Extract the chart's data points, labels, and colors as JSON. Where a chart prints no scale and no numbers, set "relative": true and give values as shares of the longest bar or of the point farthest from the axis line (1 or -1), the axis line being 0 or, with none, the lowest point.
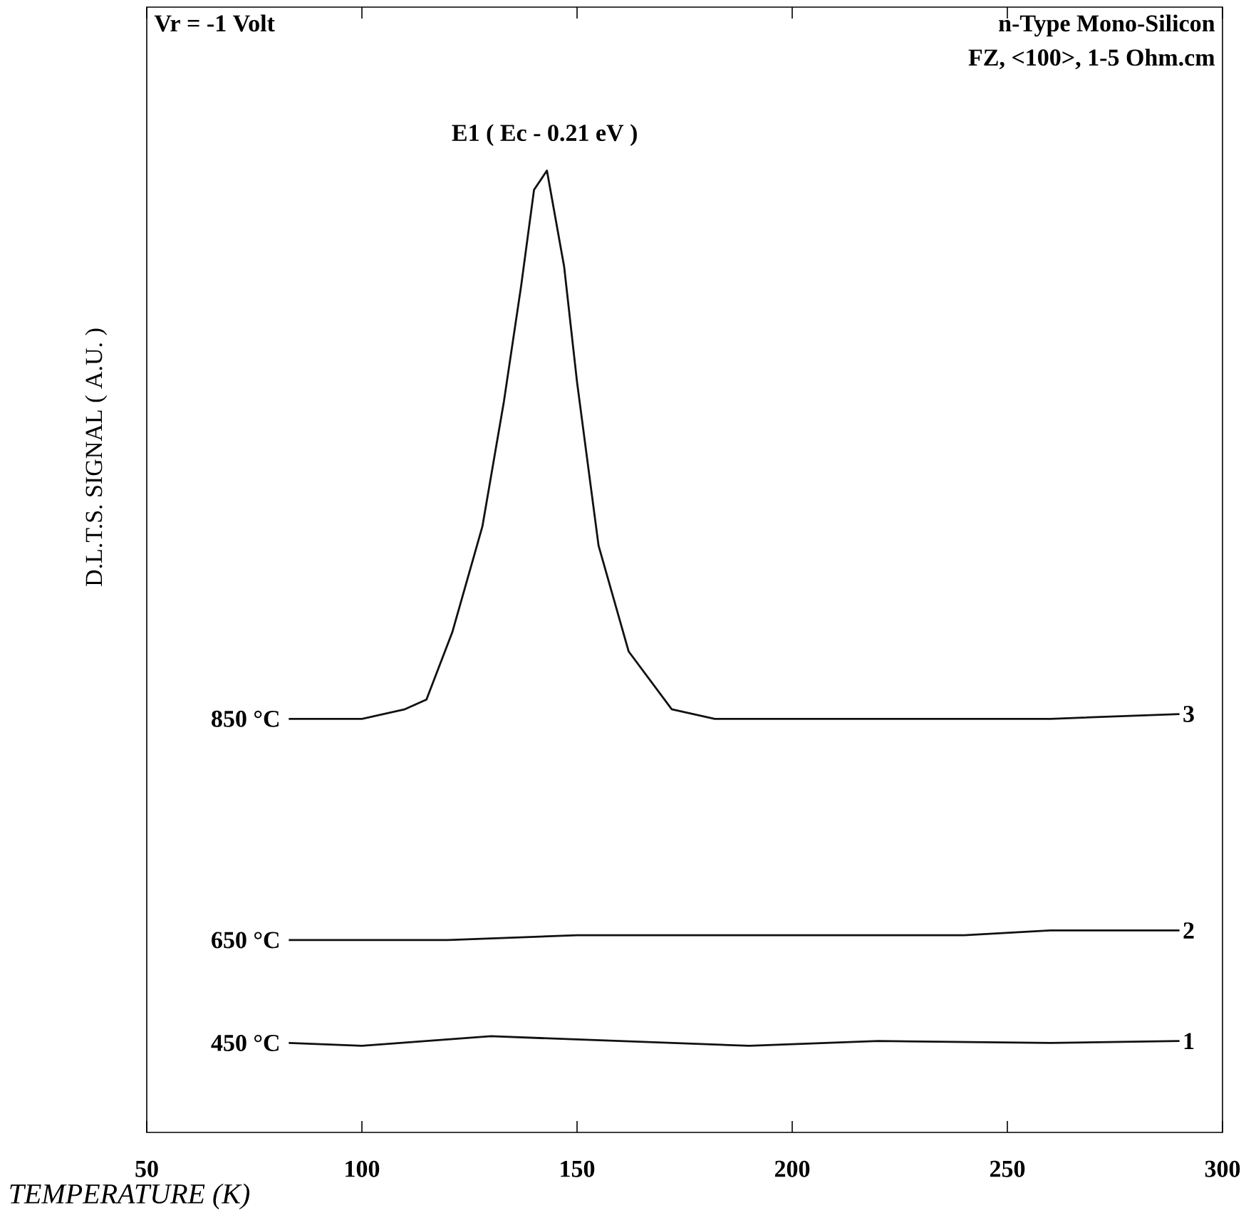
{
  "chart_data": {
    "type": "line",
    "relative": true,
    "xlabel": "TEMPERATURE (K)",
    "ylabel": "D.L.T.S. SIGNAL ( A.U. )",
    "xlim": [
      50,
      300
    ],
    "xticks": [
      50,
      100,
      150,
      200,
      250,
      300
    ],
    "grid": false,
    "marker": "none",
    "line_style": "solid",
    "series": [
      {
        "name": "850 °C",
        "color": "#111111",
        "x": [
          83,
          100,
          110,
          115,
          121,
          128,
          133,
          137,
          140,
          143,
          147,
          150,
          155,
          162,
          172,
          182,
          200,
          230,
          260,
          290
        ],
        "values": [
          0.43,
          0.43,
          0.44,
          0.45,
          0.52,
          0.63,
          0.76,
          0.88,
          0.98,
          1,
          0.9,
          0.78,
          0.61,
          0.5,
          0.44,
          0.43,
          0.43,
          0.43,
          0.43,
          0.435
        ]
      },
      {
        "name": "650 °C",
        "color": "#111111",
        "x": [
          83,
          120,
          150,
          200,
          240,
          260,
          290
        ],
        "values": [
          0.2,
          0.2,
          0.205,
          0.205,
          0.205,
          0.21,
          0.21
        ]
      },
      {
        "name": "450 °C",
        "color": "#111111",
        "x": [
          83,
          100,
          130,
          160,
          190,
          220,
          260,
          290
        ],
        "values": [
          0.093,
          0.09,
          0.1,
          0.095,
          0.09,
          0.095,
          0.093,
          0.095
        ]
      }
    ],
    "annotations": [
      "Vr = -1 Volt",
      "n-Type Mono-Silicon",
      "FZ, <100>, 1-5 Ohm.cm",
      "E1 ( Ec - 0.21 eV )",
      "3",
      "2",
      "1"
    ]
  }
}
